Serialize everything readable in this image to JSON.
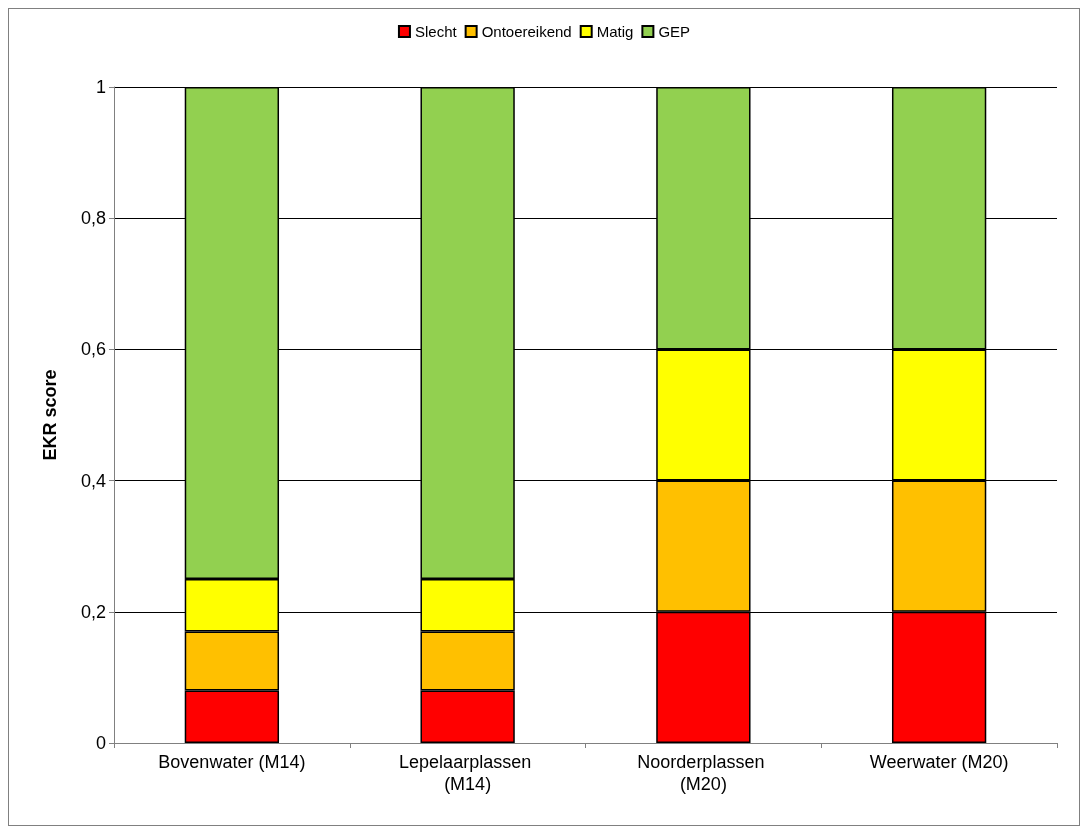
{
  "chart_data": {
    "type": "bar",
    "stacked": true,
    "ylabel": "EKR score",
    "categories": [
      "Bovenwater (M14)",
      "Lepelaarplassen (M14)",
      "Noorderplassen (M20)",
      "Weerwater (M20)"
    ],
    "series": [
      {
        "name": "Slecht",
        "color": "#ff0000",
        "values": [
          0.08,
          0.08,
          0.2,
          0.2
        ]
      },
      {
        "name": "Ontoereikend",
        "color": "#ffc000",
        "values": [
          0.09,
          0.09,
          0.2,
          0.2
        ]
      },
      {
        "name": "Matig",
        "color": "#ffff00",
        "values": [
          0.08,
          0.08,
          0.2,
          0.2
        ]
      },
      {
        "name": "GEP",
        "color": "#92d050",
        "values": [
          0.75,
          0.75,
          0.4,
          0.4
        ]
      }
    ],
    "ylim": [
      0,
      1
    ],
    "yticks": [
      0,
      {
        "value": 0.2,
        "label": "0,2"
      },
      {
        "value": 0.4,
        "label": "0,4"
      },
      {
        "value": 0.6,
        "label": "0,6"
      },
      {
        "value": 0.8,
        "label": "0,8"
      },
      1
    ],
    "grid": "y",
    "legend": "top"
  }
}
